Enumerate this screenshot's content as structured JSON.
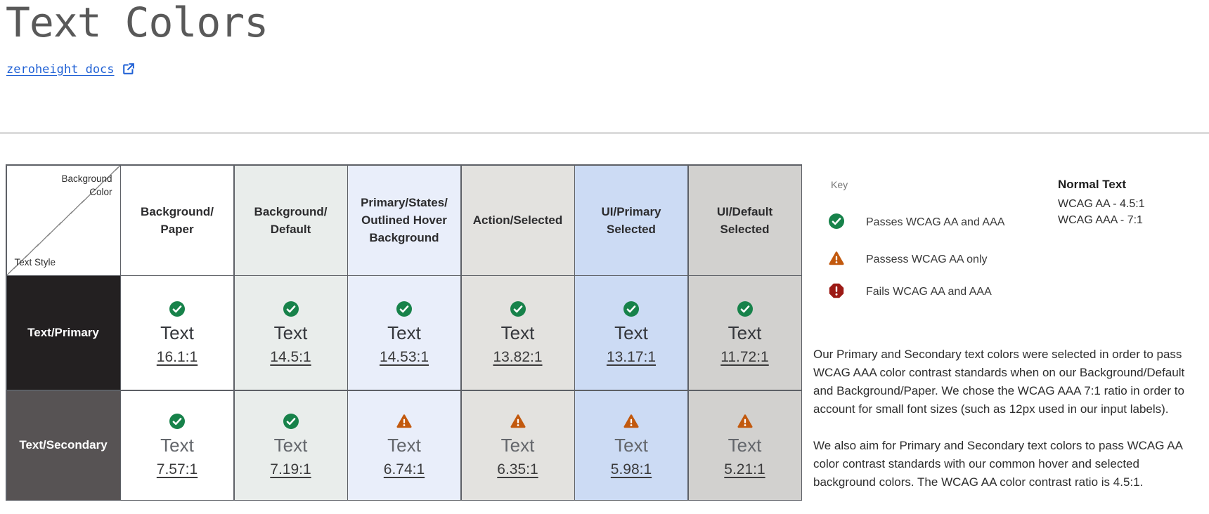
{
  "page": {
    "title": "Text Colors",
    "link_label": "zeroheight docs"
  },
  "status_colors": {
    "pass": "#17824a",
    "warn": "#c2590e",
    "fail": "#9c1a15"
  },
  "table": {
    "corner": {
      "top_label": "Background\nColor",
      "bottom_label": "Text Style"
    },
    "sample_label": "Text",
    "columns": [
      {
        "id": "background-paper",
        "label": "Background/\nPaper",
        "bg": "#ffffff"
      },
      {
        "id": "background-default",
        "label": "Background/\nDefault",
        "bg": "#e9edeb"
      },
      {
        "id": "primary-states-outlined-hover-background",
        "label": "Primary/States/\nOutlined Hover\nBackground",
        "bg": "#e9eefa"
      },
      {
        "id": "action-selected",
        "label": "Action/Selected",
        "bg": "#e3e2df"
      },
      {
        "id": "ui-primary-selected",
        "label": "UI/Primary\nSelected",
        "bg": "#ccdbf4"
      },
      {
        "id": "ui-default-selected",
        "label": "UI/Default\nSelected",
        "bg": "#d2d1cf"
      }
    ],
    "rows": [
      {
        "id": "text-primary",
        "label": "Text/Primary",
        "header_bg": "#232021",
        "header_text_color": "#ffffff",
        "sample_color": "#35373c",
        "cells": [
          {
            "status": "pass",
            "ratio": "16.1:1"
          },
          {
            "status": "pass",
            "ratio": "14.5:1"
          },
          {
            "status": "pass",
            "ratio": "14.53:1"
          },
          {
            "status": "pass",
            "ratio": "13.82:1"
          },
          {
            "status": "pass",
            "ratio": "13.17:1"
          },
          {
            "status": "pass",
            "ratio": "11.72:1"
          }
        ]
      },
      {
        "id": "text-secondary",
        "label": "Text/Secondary",
        "header_bg": "#575354",
        "header_text_color": "#ffffff",
        "sample_color": "#63666b",
        "cells": [
          {
            "status": "pass",
            "ratio": "7.57:1"
          },
          {
            "status": "pass",
            "ratio": "7.19:1"
          },
          {
            "status": "warn",
            "ratio": "6.74:1"
          },
          {
            "status": "warn",
            "ratio": "6.35:1"
          },
          {
            "status": "warn",
            "ratio": "5.98:1"
          },
          {
            "status": "warn",
            "ratio": "5.21:1"
          }
        ]
      }
    ]
  },
  "key": {
    "title": "Key",
    "items": [
      {
        "status": "pass",
        "icon": "pass-check-icon",
        "label": "Passes WCAG AA and AAA"
      },
      {
        "status": "warn",
        "icon": "warn-triangle-icon",
        "label": "Passess WCAG AA only"
      },
      {
        "status": "fail",
        "icon": "fail-octagon-icon",
        "label": "Fails WCAG AA and AAA"
      }
    ]
  },
  "normal_text": {
    "title": "Normal Text",
    "lines": "WCAG AA - 4.5:1\nWCAG AAA - 7:1"
  },
  "paragraphs": [
    "Our Primary and Secondary text colors were selected in order to pass\nWCAG AAA color contrast standards when on our Background/Default\nand Background/Paper. We chose the WCAG AAA 7:1 ratio in order to\naccount for small font sizes (such as 12px used in our input labels).",
    "We also aim for Primary and Secondary text colors to pass WCAG AA\ncolor contrast standards with our common hover and selected\nbackground colors. The WCAG AA color contrast ratio is 4.5:1."
  ]
}
